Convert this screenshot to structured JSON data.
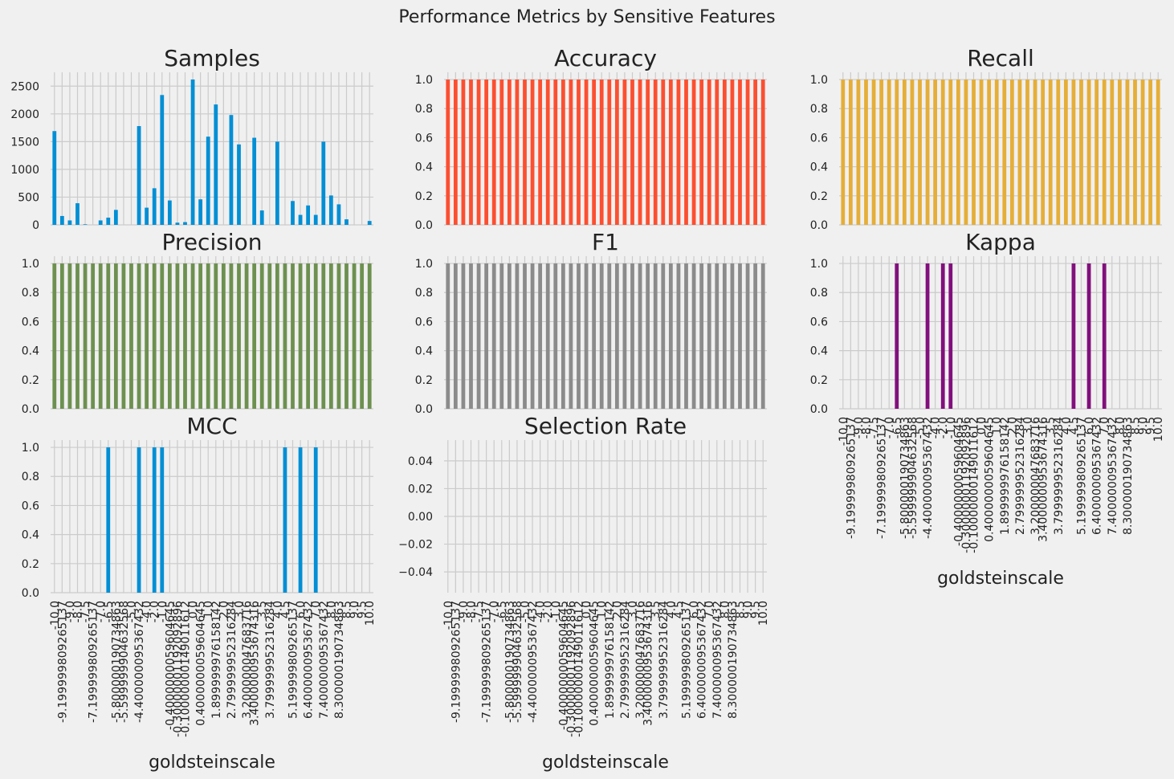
{
  "suptitle": "Performance Metrics by Sensitive Features",
  "colors": {
    "background": "#f0f0f0",
    "grid": "#cbcbcb",
    "samples": "#008fd5",
    "accuracy": "#fc4f30",
    "recall": "#e5ae38",
    "precision": "#6d904f",
    "f1": "#8b8b8b",
    "kappa": "#810f7c",
    "mcc": "#008fd5",
    "selection_rate": "#008fd5"
  },
  "chart_data": [
    {
      "type": "bar",
      "title": "Samples",
      "color_key": "samples",
      "xlabel": "",
      "ylim": [
        0,
        2750
      ],
      "yticks": [
        0,
        500,
        1000,
        1500,
        2000,
        2500
      ],
      "ytick_labels": [
        "0",
        "500",
        "1000",
        "1500",
        "2000",
        "2500"
      ],
      "show_xticklabels": false,
      "values": [
        1690,
        160,
        80,
        390,
        10,
        0,
        80,
        130,
        270,
        0,
        0,
        1780,
        310,
        660,
        2340,
        440,
        40,
        50,
        2620,
        460,
        1590,
        2170,
        0,
        1980,
        1450,
        0,
        1570,
        260,
        0,
        1500,
        0,
        430,
        180,
        350,
        180,
        1500,
        530,
        370,
        100,
        0,
        0,
        70
      ]
    },
    {
      "type": "bar",
      "title": "Accuracy",
      "color_key": "accuracy",
      "xlabel": "",
      "ylim": [
        0,
        1.05
      ],
      "yticks": [
        0,
        0.2,
        0.4,
        0.6,
        0.8,
        1.0
      ],
      "ytick_labels": [
        "0.0",
        "0.2",
        "0.4",
        "0.6",
        "0.8",
        "1.0"
      ],
      "show_xticklabels": false,
      "values": [
        1,
        1,
        1,
        1,
        1,
        1,
        1,
        1,
        1,
        1,
        1,
        1,
        1,
        1,
        1,
        1,
        1,
        1,
        1,
        1,
        1,
        1,
        1,
        1,
        1,
        1,
        1,
        1,
        1,
        1,
        1,
        1,
        1,
        1,
        1,
        1,
        1,
        1,
        1,
        1,
        1,
        1
      ]
    },
    {
      "type": "bar",
      "title": "Recall",
      "color_key": "recall",
      "xlabel": "",
      "ylim": [
        0,
        1.05
      ],
      "yticks": [
        0,
        0.2,
        0.4,
        0.6,
        0.8,
        1.0
      ],
      "ytick_labels": [
        "0.0",
        "0.2",
        "0.4",
        "0.6",
        "0.8",
        "1.0"
      ],
      "show_xticklabels": false,
      "values": [
        1,
        1,
        1,
        1,
        1,
        1,
        1,
        1,
        1,
        1,
        1,
        1,
        1,
        1,
        1,
        1,
        1,
        1,
        1,
        1,
        1,
        1,
        1,
        1,
        1,
        1,
        1,
        1,
        1,
        1,
        1,
        1,
        1,
        1,
        1,
        1,
        1,
        1,
        1,
        1,
        1,
        1
      ]
    },
    {
      "type": "bar",
      "title": "Precision",
      "color_key": "precision",
      "xlabel": "",
      "ylim": [
        0,
        1.05
      ],
      "yticks": [
        0,
        0.2,
        0.4,
        0.6,
        0.8,
        1.0
      ],
      "ytick_labels": [
        "0.0",
        "0.2",
        "0.4",
        "0.6",
        "0.8",
        "1.0"
      ],
      "show_xticklabels": false,
      "values": [
        1,
        1,
        1,
        1,
        1,
        1,
        1,
        1,
        1,
        1,
        1,
        1,
        1,
        1,
        1,
        1,
        1,
        1,
        1,
        1,
        1,
        1,
        1,
        1,
        1,
        1,
        1,
        1,
        1,
        1,
        1,
        1,
        1,
        1,
        1,
        1,
        1,
        1,
        1,
        1,
        1,
        1
      ]
    },
    {
      "type": "bar",
      "title": "F1",
      "color_key": "f1",
      "xlabel": "",
      "ylim": [
        0,
        1.05
      ],
      "yticks": [
        0,
        0.2,
        0.4,
        0.6,
        0.8,
        1.0
      ],
      "ytick_labels": [
        "0.0",
        "0.2",
        "0.4",
        "0.6",
        "0.8",
        "1.0"
      ],
      "show_xticklabels": false,
      "values": [
        1,
        1,
        1,
        1,
        1,
        1,
        1,
        1,
        1,
        1,
        1,
        1,
        1,
        1,
        1,
        1,
        1,
        1,
        1,
        1,
        1,
        1,
        1,
        1,
        1,
        1,
        1,
        1,
        1,
        1,
        1,
        1,
        1,
        1,
        1,
        1,
        1,
        1,
        1,
        1,
        1,
        1
      ]
    },
    {
      "type": "bar",
      "title": "Kappa",
      "color_key": "kappa",
      "xlabel": "goldsteinscale",
      "ylim": [
        0,
        1.05
      ],
      "yticks": [
        0,
        0.2,
        0.4,
        0.6,
        0.8,
        1.0
      ],
      "ytick_labels": [
        "0.0",
        "0.2",
        "0.4",
        "0.6",
        "0.8",
        "1.0"
      ],
      "show_xticklabels": true,
      "values": [
        0,
        0,
        0,
        0,
        0,
        0,
        0,
        1,
        0,
        0,
        0,
        1,
        0,
        1,
        1,
        0,
        0,
        0,
        0,
        0,
        0,
        0,
        0,
        0,
        0,
        0,
        0,
        0,
        0,
        0,
        1,
        0,
        1,
        0,
        1,
        0,
        0,
        0,
        0,
        0,
        0,
        0
      ]
    },
    {
      "type": "bar",
      "title": "MCC",
      "color_key": "mcc",
      "xlabel": "goldsteinscale",
      "ylim": [
        0,
        1.05
      ],
      "yticks": [
        0,
        0.2,
        0.4,
        0.6,
        0.8,
        1.0
      ],
      "ytick_labels": [
        "0.0",
        "0.2",
        "0.4",
        "0.6",
        "0.8",
        "1.0"
      ],
      "show_xticklabels": true,
      "values": [
        0,
        0,
        0,
        0,
        0,
        0,
        0,
        1,
        0,
        0,
        0,
        1,
        0,
        1,
        1,
        0,
        0,
        0,
        0,
        0,
        0,
        0,
        0,
        0,
        0,
        0,
        0,
        0,
        0,
        0,
        1,
        0,
        1,
        0,
        1,
        0,
        0,
        0,
        0,
        0,
        0,
        0
      ]
    },
    {
      "type": "bar",
      "title": "Selection Rate",
      "color_key": "selection_rate",
      "xlabel": "goldsteinscale",
      "ylim": [
        -0.055,
        0.055
      ],
      "yticks": [
        -0.04,
        -0.02,
        0.0,
        0.02,
        0.04
      ],
      "ytick_labels": [
        "−0.04",
        "−0.02",
        "0.00",
        "0.02",
        "0.04"
      ],
      "show_xticklabels": true,
      "values": [
        0,
        0,
        0,
        0,
        0,
        0,
        0,
        0,
        0,
        0,
        0,
        0,
        0,
        0,
        0,
        0,
        0,
        0,
        0,
        0,
        0,
        0,
        0,
        0,
        0,
        0,
        0,
        0,
        0,
        0,
        0,
        0,
        0,
        0,
        0,
        0,
        0,
        0,
        0,
        0,
        0,
        0
      ]
    }
  ],
  "x_categories": [
    "-10.0",
    "-9.199999809265137",
    "-9.0",
    "-8.0",
    "-7.5",
    "-7.199999809265137",
    "-7.0",
    "-6.5",
    "-5.800000190734863",
    "-5.599999904632568",
    "-5.0",
    "-4.400000095367432",
    "-4.0",
    "-2.0",
    "-1.0",
    "-0.4000000059604645",
    "-0.30000001192092896",
    "-0.10000000149011612",
    "0.0",
    "0.4000000059604645",
    "1.0",
    "1.899999976158142",
    "2.0",
    "2.799999952316284",
    "3.0",
    "3.200000047683716",
    "3.4000000953674316",
    "3.5",
    "3.799999952316284",
    "4.0",
    "4.5",
    "5.199999809265137",
    "6.0",
    "6.400000095367432",
    "7.0",
    "7.400000095367432",
    "8.0",
    "8.300000190734863",
    "8.5",
    "9.0",
    "9.5",
    "10.0"
  ]
}
